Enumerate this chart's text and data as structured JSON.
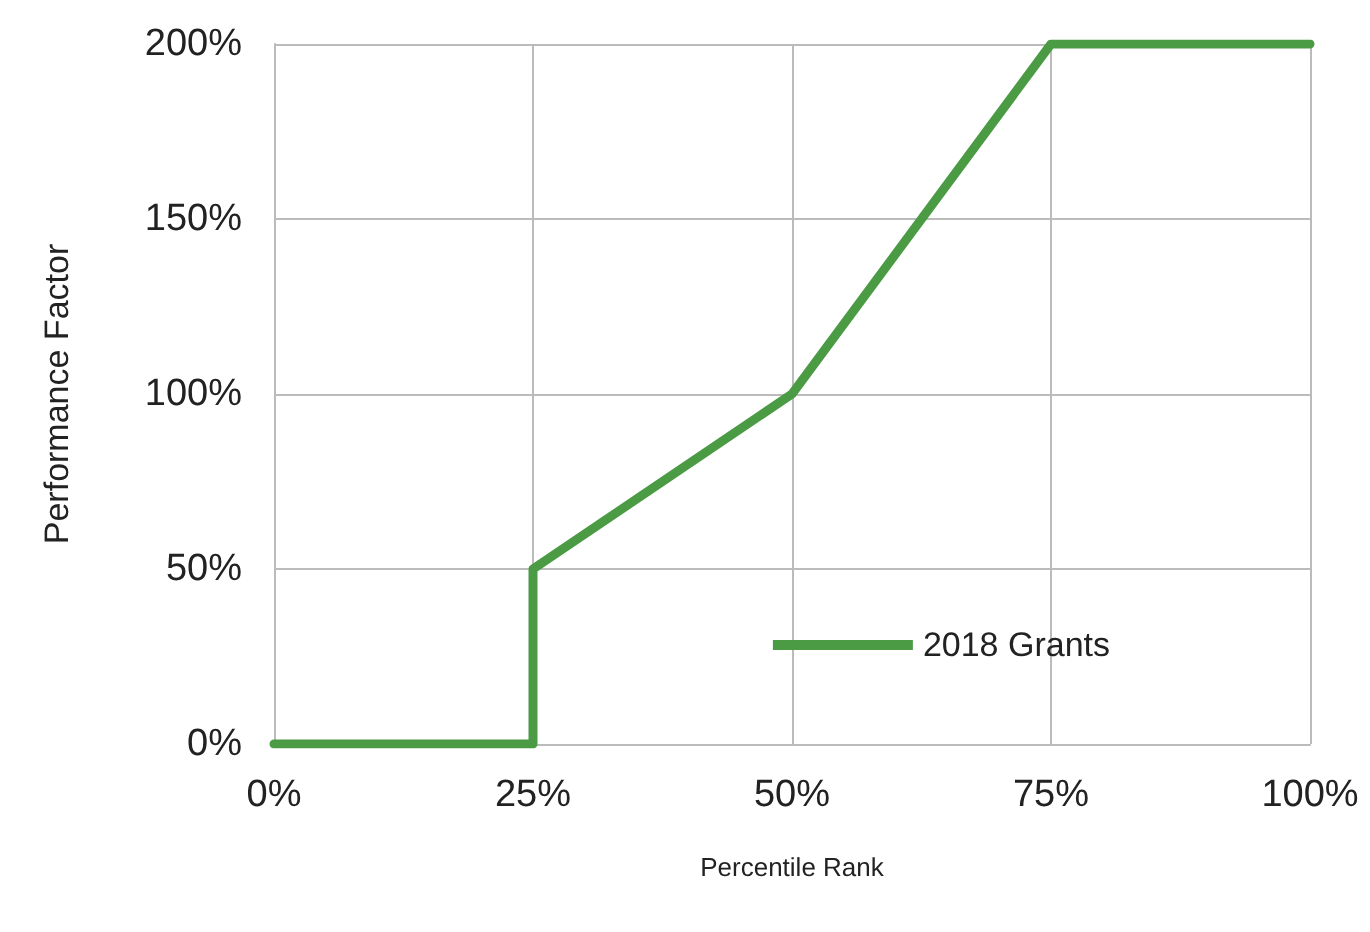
{
  "chart_data": {
    "type": "line",
    "xlabel": "Percentile Rank",
    "ylabel": "Performance Factor",
    "x": [
      0,
      25,
      25,
      50,
      75,
      100
    ],
    "series": [
      {
        "name": "2018 Grants",
        "color": "#4b9b45",
        "values": [
          0,
          0,
          50,
          100,
          200,
          200
        ]
      }
    ],
    "xlim": [
      0,
      100
    ],
    "ylim": [
      0,
      200
    ],
    "xticks": [
      {
        "value": 0,
        "label": "0%"
      },
      {
        "value": 25,
        "label": "25%"
      },
      {
        "value": 50,
        "label": "50%"
      },
      {
        "value": 75,
        "label": "75%"
      },
      {
        "value": 100,
        "label": "100%"
      }
    ],
    "yticks": [
      {
        "value": 0,
        "label": "0%"
      },
      {
        "value": 50,
        "label": "50%"
      },
      {
        "value": 100,
        "label": "100%"
      },
      {
        "value": 150,
        "label": "150%"
      },
      {
        "value": 200,
        "label": "200%"
      }
    ],
    "grid": true,
    "legend": "bottom right"
  }
}
